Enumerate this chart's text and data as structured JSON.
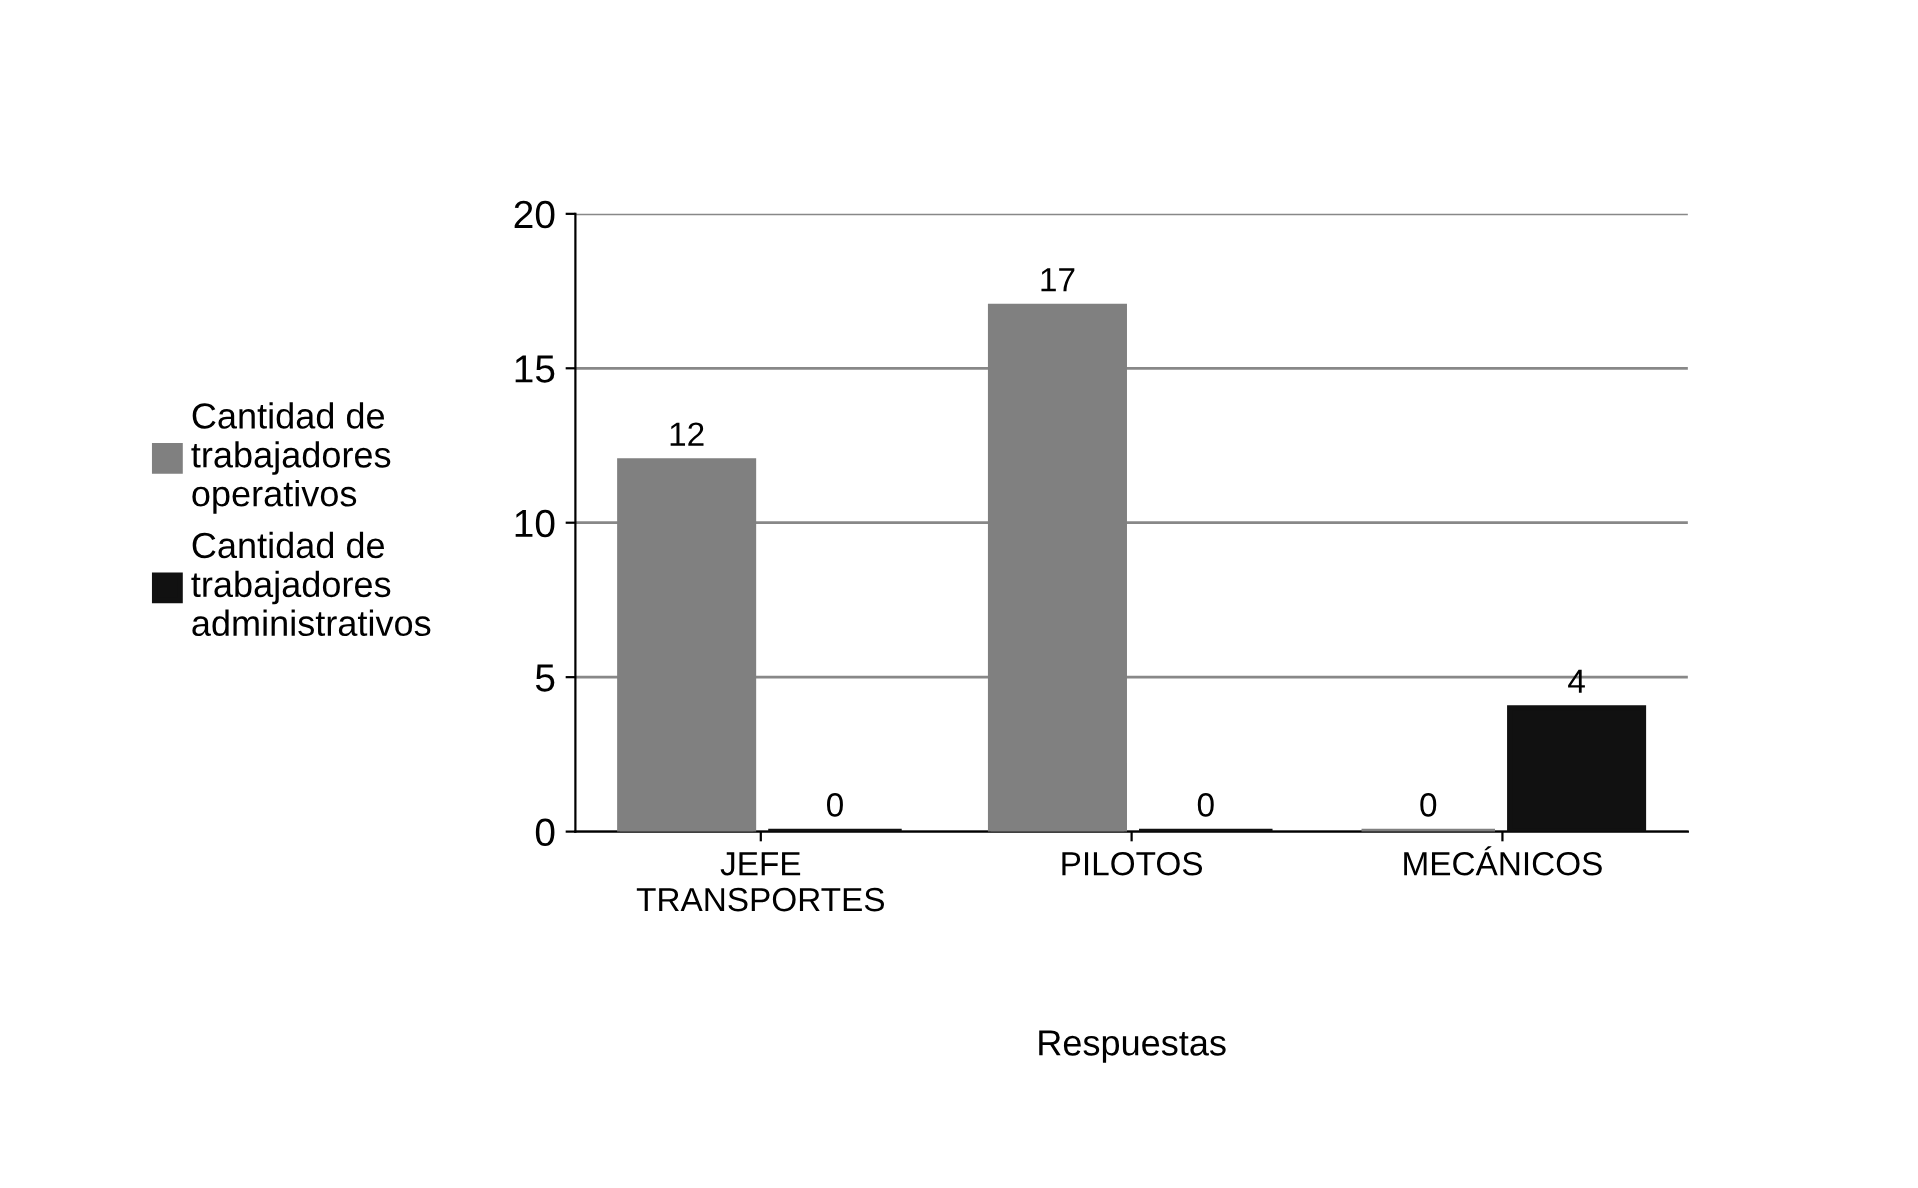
{
  "chart_data": {
    "type": "bar",
    "xlabel": "Respuestas",
    "categories": [
      "JEFE\nTRANSPORTES",
      "PILOTOS",
      "MECÁNICOS"
    ],
    "series": [
      {
        "name": "Cantidad de\ntrabajadores\noperativos",
        "color": "#808080",
        "values": [
          12,
          17,
          0
        ]
      },
      {
        "name": "Cantidad de\ntrabajadores\nadministrativos",
        "color": "#111111",
        "values": [
          0,
          0,
          4
        ]
      }
    ],
    "ylim": [
      0,
      20
    ],
    "yticks": [
      0,
      5,
      10,
      15,
      20
    ],
    "grid": "y",
    "legend": "left",
    "data_labels": true
  }
}
